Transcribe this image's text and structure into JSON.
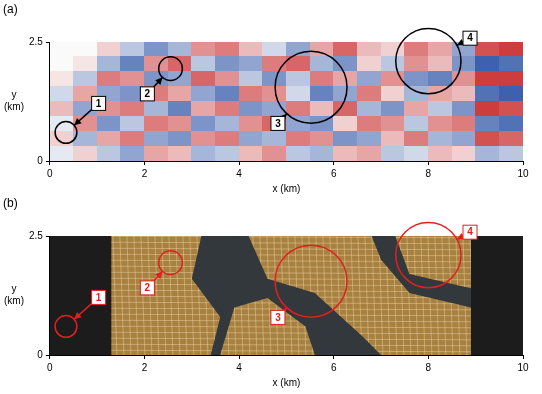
{
  "chart_data": [
    {
      "type": "heatmap",
      "title": "(a)",
      "x_label": "x (km)",
      "y_label": "y (km)",
      "xlim": [
        0,
        10
      ],
      "ylim": [
        0,
        2.5
      ],
      "xticks": [
        0,
        2,
        4,
        6,
        8,
        10
      ],
      "yticks": [
        0,
        2.5
      ],
      "grid": false,
      "x_edges": [
        0,
        0.5,
        1,
        1.5,
        2,
        2.5,
        3,
        3.5,
        4,
        4.5,
        5,
        5.5,
        6,
        6.5,
        7,
        7.5,
        8,
        8.5,
        9,
        9.5,
        10
      ],
      "y_edges": [
        2.5,
        2.1875,
        1.875,
        1.5625,
        1.25,
        0.9375,
        0.625,
        0.3125,
        0
      ],
      "cell_range": [
        -1,
        1
      ],
      "cells": [
        [
          0,
          0,
          0.2,
          -0.3,
          -0.6,
          -0.4,
          0.5,
          0.6,
          0.3,
          -0.2,
          -0.5,
          0.4,
          0.7,
          0.3,
          0.2,
          0.6,
          0.4,
          -0.5,
          0.8,
          0.9
        ],
        [
          0,
          0.1,
          -0.4,
          -0.7,
          0.5,
          0.7,
          -0.3,
          -0.6,
          -0.5,
          0.6,
          0.7,
          -0.4,
          -0.6,
          0.2,
          -0.3,
          0.5,
          0.3,
          -0.6,
          -0.9,
          -0.8
        ],
        [
          0.1,
          -0.3,
          0.6,
          0.5,
          -0.6,
          -0.5,
          0.7,
          0.5,
          -0.3,
          -0.6,
          -0.3,
          0.6,
          0.4,
          -0.5,
          0.5,
          -0.6,
          -0.7,
          0.5,
          0.9,
          0.9
        ],
        [
          -0.2,
          0.4,
          -0.5,
          -0.6,
          0.6,
          0.4,
          -0.5,
          -0.7,
          0.6,
          0.5,
          -0.2,
          -0.7,
          -0.5,
          0.6,
          0.2,
          -0.4,
          0.4,
          0.3,
          -0.8,
          -0.9
        ],
        [
          0.3,
          -0.5,
          0.5,
          0.6,
          -0.4,
          -0.7,
          0.4,
          0.6,
          -0.6,
          -0.5,
          0.6,
          0.3,
          0.7,
          -0.4,
          -0.6,
          0.4,
          -0.3,
          -0.6,
          0.9,
          0.8
        ],
        [
          -0.1,
          0.5,
          -0.6,
          -0.3,
          0.6,
          0.5,
          -0.6,
          -0.4,
          0.5,
          0.7,
          -0.5,
          -0.6,
          0.2,
          0.6,
          0.5,
          -0.3,
          0.5,
          0.6,
          -0.7,
          -0.8
        ],
        [
          0.2,
          -0.4,
          0.4,
          0.6,
          -0.5,
          -0.6,
          0.5,
          0.6,
          -0.5,
          -0.4,
          0.6,
          0.5,
          -0.6,
          -0.5,
          0.3,
          0.6,
          -0.4,
          -0.5,
          0.8,
          0.7
        ],
        [
          -0.1,
          0.2,
          -0.3,
          -0.5,
          0.4,
          0.3,
          -0.4,
          -0.3,
          0.3,
          0.5,
          -0.3,
          -0.4,
          0.3,
          0.4,
          -0.3,
          -0.2,
          0.3,
          0.2,
          -0.4,
          -0.3
        ]
      ],
      "color": "#000000",
      "annotations": [
        {
          "label": "1",
          "x": 0.34,
          "y": 0.6,
          "r": 0.23,
          "label_x": 1.03,
          "label_y": 1.21
        },
        {
          "label": "2",
          "x": 2.55,
          "y": 1.94,
          "r": 0.25,
          "label_x": 2.06,
          "label_y": 1.41
        },
        {
          "label": "3",
          "x": 5.52,
          "y": 1.55,
          "r": 0.76,
          "label_x": 4.82,
          "label_y": 0.79
        },
        {
          "label": "4",
          "x": 8.0,
          "y": 2.1,
          "r": 0.69,
          "label_x": 8.88,
          "label_y": 2.58
        }
      ]
    },
    {
      "type": "map",
      "title": "(b)",
      "x_label": "x (km)",
      "y_label": "y (km)",
      "xlim": [
        0,
        10
      ],
      "ylim": [
        0,
        2.5
      ],
      "xticks": [
        0,
        2,
        4,
        6,
        8,
        10
      ],
      "yticks": [
        0,
        2.5
      ],
      "grid": false,
      "color": "#e02020",
      "annotations": [
        {
          "label": "1",
          "x": 0.34,
          "y": 0.6,
          "r": 0.23,
          "label_x": 1.03,
          "label_y": 1.21
        },
        {
          "label": "2",
          "x": 2.55,
          "y": 1.94,
          "r": 0.25,
          "label_x": 2.06,
          "label_y": 1.41
        },
        {
          "label": "3",
          "x": 5.52,
          "y": 1.55,
          "r": 0.76,
          "label_x": 4.82,
          "label_y": 0.79
        },
        {
          "label": "4",
          "x": 8.0,
          "y": 2.1,
          "r": 0.69,
          "label_x": 8.88,
          "label_y": 2.58
        }
      ]
    }
  ]
}
